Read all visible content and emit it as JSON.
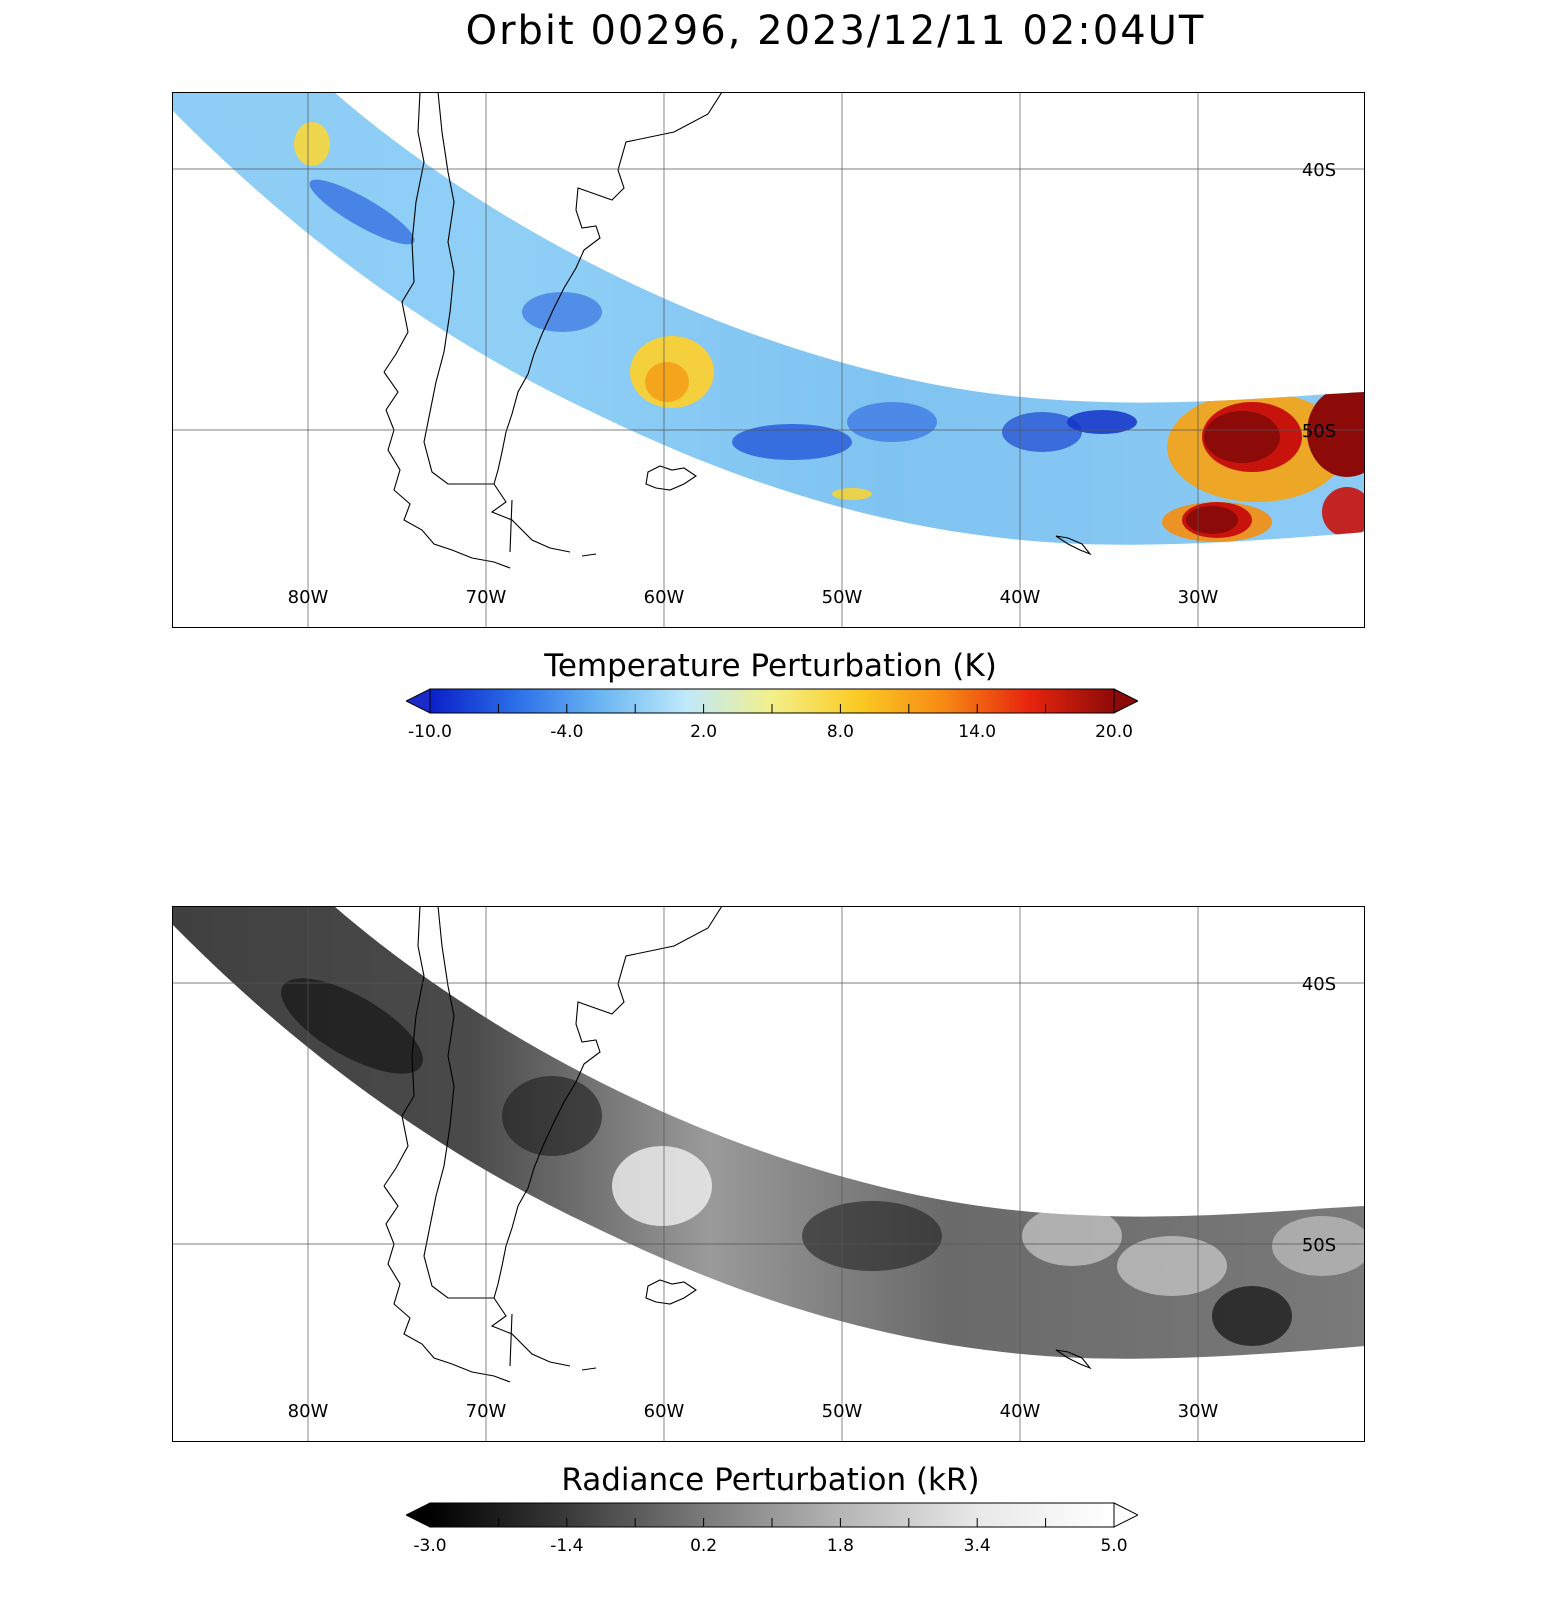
{
  "title": "Orbit 00296, 2023/12/11 02:04UT",
  "lon_labels": [
    "80W",
    "70W",
    "60W",
    "50W",
    "40W",
    "30W"
  ],
  "lat_labels": [
    "40S",
    "50S"
  ],
  "panels": [
    {
      "id": "temperature",
      "colorbar_title": "Temperature Perturbation (K)",
      "colorbar_ticks": [
        "-10.0",
        "-4.0",
        "2.0",
        "8.0",
        "14.0",
        "20.0"
      ],
      "colormap": [
        "#0b1fc9",
        "#2a6ee8",
        "#6ab6f2",
        "#bfe9fb",
        "#f3f08a",
        "#fbcb23",
        "#f78a14",
        "#e8250e",
        "#8e0a08"
      ],
      "under_color": "#1a2ac9",
      "over_color": "#8a0a0a"
    },
    {
      "id": "radiance",
      "colorbar_title": "Radiance Perturbation (kR)",
      "colorbar_ticks": [
        "-3.0",
        "-1.4",
        "0.2",
        "1.8",
        "3.4",
        "5.0"
      ],
      "colormap": [
        "#000000",
        "#3a3a3a",
        "#7a7a7a",
        "#b5b5b5",
        "#e8e8e8",
        "#ffffff"
      ],
      "under_color": "#000000",
      "over_color": "#ffffff"
    }
  ]
}
